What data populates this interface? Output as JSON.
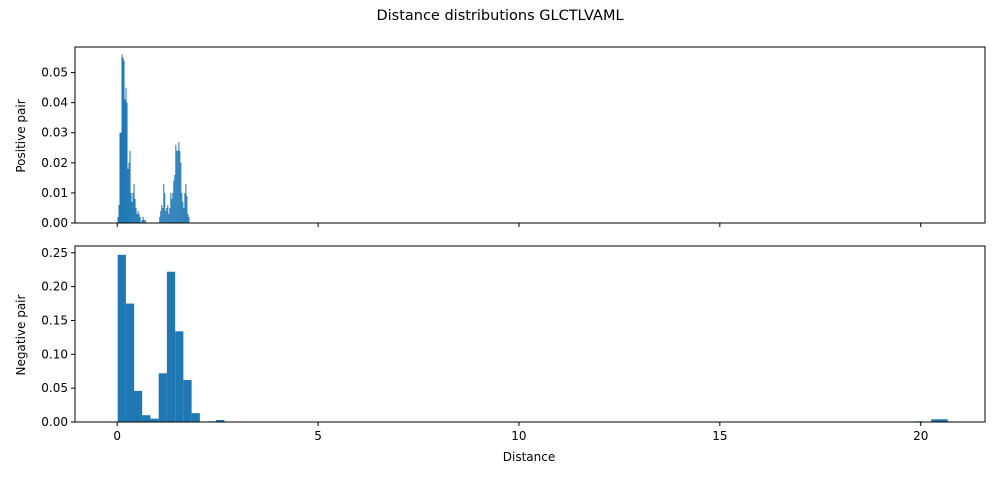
{
  "chart_data": {
    "title": "Distance distributions GLCTLVAML",
    "type": "bar",
    "xlabel": "Distance",
    "xlim": [
      -1.05,
      21.6
    ],
    "xticks": [
      0,
      5,
      10,
      15,
      20
    ],
    "color": "#1f77b4",
    "panels": [
      {
        "name": "positive",
        "ylabel": "Positive pair",
        "ylim": [
          0,
          0.0585
        ],
        "yticks": [
          "0.00",
          "0.01",
          "0.02",
          "0.03",
          "0.04",
          "0.05"
        ],
        "show_xticklabels": false,
        "bin_width": 0.025,
        "bars": [
          [
            0.02,
            0.002
          ],
          [
            0.045,
            0.006
          ],
          [
            0.07,
            0.03
          ],
          [
            0.095,
            0.03
          ],
          [
            0.12,
            0.056
          ],
          [
            0.145,
            0.055
          ],
          [
            0.17,
            0.054
          ],
          [
            0.195,
            0.041
          ],
          [
            0.22,
            0.045
          ],
          [
            0.245,
            0.04
          ],
          [
            0.27,
            0.018
          ],
          [
            0.295,
            0.02
          ],
          [
            0.32,
            0.024
          ],
          [
            0.345,
            0.01
          ],
          [
            0.37,
            0.007
          ],
          [
            0.395,
            0.01
          ],
          [
            0.42,
            0.013
          ],
          [
            0.445,
            0.008
          ],
          [
            0.47,
            0.005
          ],
          [
            0.495,
            0.003
          ],
          [
            0.52,
            0.004
          ],
          [
            0.545,
            0.003
          ],
          [
            0.57,
            0.002
          ],
          [
            0.62,
            0.001
          ],
          [
            0.645,
            0.002
          ],
          [
            0.67,
            0.001
          ],
          [
            0.7,
            0.001
          ],
          [
            1.06,
            0.002
          ],
          [
            1.085,
            0.004
          ],
          [
            1.11,
            0.006
          ],
          [
            1.135,
            0.005
          ],
          [
            1.16,
            0.013
          ],
          [
            1.185,
            0.01
          ],
          [
            1.21,
            0.004
          ],
          [
            1.235,
            0.005
          ],
          [
            1.26,
            0.006
          ],
          [
            1.285,
            0.003
          ],
          [
            1.31,
            0.005
          ],
          [
            1.335,
            0.01
          ],
          [
            1.36,
            0.008
          ],
          [
            1.385,
            0.01
          ],
          [
            1.41,
            0.014
          ],
          [
            1.435,
            0.016
          ],
          [
            1.46,
            0.026
          ],
          [
            1.485,
            0.024
          ],
          [
            1.51,
            0.024
          ],
          [
            1.535,
            0.027
          ],
          [
            1.56,
            0.024
          ],
          [
            1.585,
            0.02
          ],
          [
            1.61,
            0.01
          ],
          [
            1.635,
            0.007
          ],
          [
            1.66,
            0.005
          ],
          [
            1.685,
            0.01
          ],
          [
            1.71,
            0.013
          ],
          [
            1.735,
            0.009
          ],
          [
            1.76,
            0.003
          ],
          [
            1.785,
            0.002
          ]
        ]
      },
      {
        "name": "negative",
        "ylabel": "Negative pair",
        "ylim": [
          0,
          0.26
        ],
        "yticks": [
          "0.00",
          "0.05",
          "0.10",
          "0.15",
          "0.20",
          "0.25"
        ],
        "show_xticklabels": true,
        "bin_width": 0.2045,
        "bars": [
          [
            0.115,
            0.247
          ],
          [
            0.32,
            0.175
          ],
          [
            0.52,
            0.046
          ],
          [
            0.725,
            0.01
          ],
          [
            0.93,
            0.005
          ],
          [
            1.135,
            0.072
          ],
          [
            1.34,
            0.222
          ],
          [
            1.545,
            0.134
          ],
          [
            1.75,
            0.062
          ],
          [
            1.955,
            0.013
          ],
          [
            2.36,
            0.001
          ],
          [
            2.565,
            0.003
          ],
          [
            19.955,
            0.001
          ],
          [
            20.365,
            0.004
          ],
          [
            20.57,
            0.004
          ]
        ]
      }
    ]
  }
}
